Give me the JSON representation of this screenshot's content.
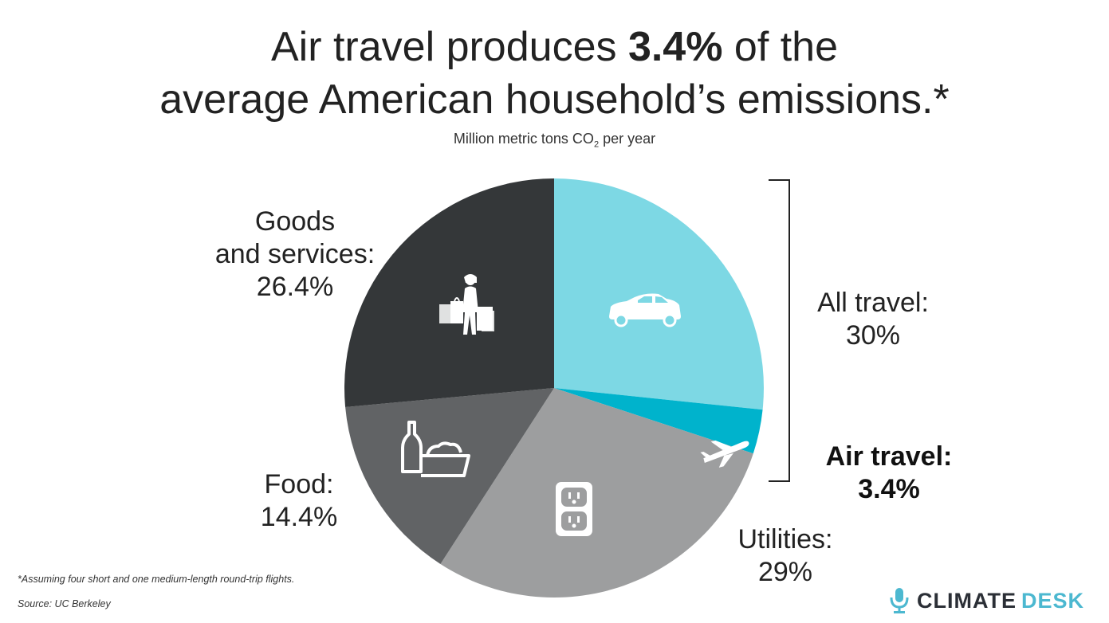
{
  "header": {
    "title_line1_pre": "Air travel produces ",
    "title_line1_bold": "3.4%",
    "title_line1_post": " of the",
    "title_line2": "average American household’s emissions.*",
    "subtitle_main": "Million metric tons CO",
    "subtitle_sub": "2",
    "subtitle_end": " per year"
  },
  "chart_data": {
    "type": "pie",
    "start_angle_deg": 0,
    "direction": "clockwise",
    "slices": [
      {
        "name": "All travel (excluding air)",
        "value": 26.6,
        "color": "#7dd8e4",
        "icon": "car-icon"
      },
      {
        "name": "Air travel",
        "value": 3.4,
        "color": "#00b3cc",
        "icon": "airplane-icon"
      },
      {
        "name": "Utilities",
        "value": 29.0,
        "color": "#9d9e9f",
        "icon": "outlet-icon"
      },
      {
        "name": "Food",
        "value": 14.4,
        "color": "#616365",
        "icon": "groceries-icon"
      },
      {
        "name": "Goods and services",
        "value": 26.4,
        "color": "#343739",
        "icon": "shopper-icon"
      }
    ],
    "labels": {
      "goods": {
        "line1": "Goods",
        "line2": "and services:",
        "line3": "26.4%"
      },
      "all_travel": {
        "line1": "All travel:",
        "line2": "30%"
      },
      "air_travel": {
        "line1": "Air travel:",
        "line2": "3.4%"
      },
      "food": {
        "line1": "Food:",
        "line2": "14.4%"
      },
      "utilities": {
        "line1": "Utilities:",
        "line2": "29%"
      }
    }
  },
  "footer": {
    "footnote": "*Assuming four short and one medium-length round-trip flights.",
    "source": "Source: UC Berkeley"
  },
  "logo": {
    "part1": "CLIMATE",
    "part2": "DESK",
    "icon": "microphone-icon"
  }
}
